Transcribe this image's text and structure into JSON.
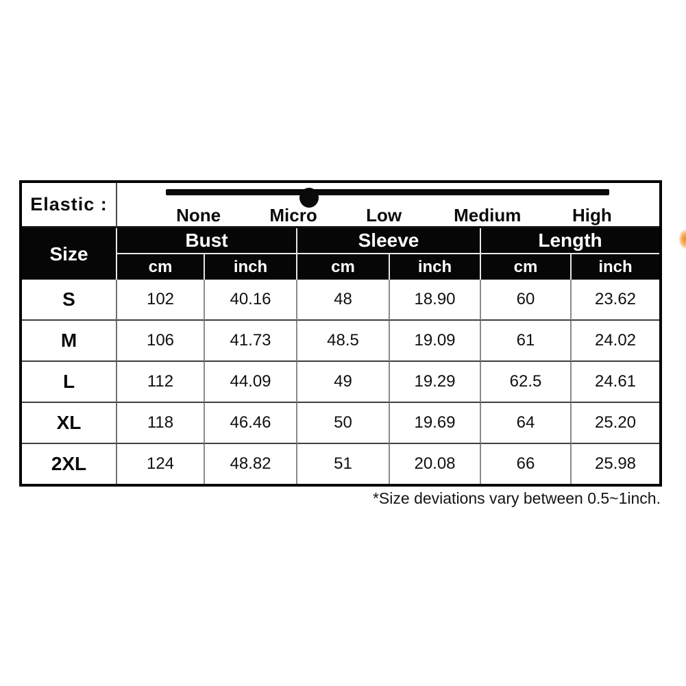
{
  "elastic": {
    "label": "Elastic :",
    "levels": [
      "None",
      "Micro",
      "Low",
      "Medium",
      "High"
    ],
    "selected_level": "Micro",
    "dot_position_pct": 32.2
  },
  "size_table": {
    "corner_header": "Size",
    "group_headers": [
      "Bust",
      "Sleeve",
      "Length"
    ],
    "unit_headers": [
      "cm",
      "inch",
      "cm",
      "inch",
      "cm",
      "inch"
    ],
    "rows": [
      {
        "size": "S",
        "values": [
          "102",
          "40.16",
          "48",
          "18.90",
          "60",
          "23.62"
        ]
      },
      {
        "size": "M",
        "values": [
          "106",
          "41.73",
          "48.5",
          "19.09",
          "61",
          "24.02"
        ]
      },
      {
        "size": "L",
        "values": [
          "112",
          "44.09",
          "49",
          "19.29",
          "62.5",
          "24.61"
        ]
      },
      {
        "size": "XL",
        "values": [
          "118",
          "46.46",
          "50",
          "19.69",
          "64",
          "25.20"
        ]
      },
      {
        "size": "2XL",
        "values": [
          "124",
          "48.82",
          "51",
          "20.08",
          "66",
          "25.98"
        ]
      }
    ]
  },
  "footnote": "*Size deviations vary between 0.5~1inch.",
  "colors": {
    "table_border": "#000000",
    "header_bg": "#060606",
    "header_text": "#ffffff",
    "grid_vertical": "#8a8a8a",
    "grid_horizontal": "#3d3d3d",
    "artifact_orange": "#ee8e1e"
  },
  "chart_data": {
    "type": "table",
    "title": "Garment size chart",
    "columns": [
      "Size",
      "Bust cm",
      "Bust inch",
      "Sleeve cm",
      "Sleeve inch",
      "Length cm",
      "Length inch"
    ],
    "rows": [
      [
        "S",
        102,
        40.16,
        48,
        18.9,
        60,
        23.62
      ],
      [
        "M",
        106,
        41.73,
        48.5,
        19.09,
        61,
        24.02
      ],
      [
        "L",
        112,
        44.09,
        49,
        19.29,
        62.5,
        24.61
      ],
      [
        "XL",
        118,
        46.46,
        50,
        19.69,
        64,
        25.2
      ],
      [
        "2XL",
        124,
        48.82,
        51,
        20.08,
        66,
        25.98
      ]
    ],
    "annotations": [
      "Elastic scale: None / Micro / Low / Medium / High with marker at Micro",
      "*Size deviations vary between 0.5~1inch."
    ]
  }
}
